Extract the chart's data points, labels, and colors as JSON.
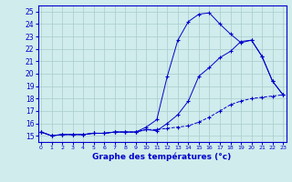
{
  "title": "Graphe des températures (°c)",
  "bg_color": "#d0ecec",
  "grid_color": "#a8cccc",
  "line_color": "#0000cc",
  "x_hours": [
    0,
    1,
    2,
    3,
    4,
    5,
    6,
    7,
    8,
    9,
    10,
    11,
    12,
    13,
    14,
    15,
    16,
    17,
    18,
    19,
    20,
    21,
    22,
    23
  ],
  "temp_line1": [
    15.3,
    15.0,
    15.1,
    15.1,
    15.1,
    15.2,
    15.2,
    15.3,
    15.3,
    15.3,
    15.7,
    16.3,
    19.8,
    22.7,
    24.2,
    24.8,
    24.9,
    24.0,
    23.2,
    22.5,
    22.7,
    21.4,
    19.4,
    18.3
  ],
  "temp_line2": [
    15.3,
    15.0,
    15.1,
    15.1,
    15.1,
    15.2,
    15.2,
    15.3,
    15.3,
    15.3,
    15.5,
    15.4,
    16.0,
    16.7,
    17.8,
    19.8,
    20.5,
    21.3,
    21.8,
    22.6,
    22.7,
    21.4,
    19.4,
    18.3
  ],
  "temp_line3": [
    15.3,
    15.0,
    15.1,
    15.1,
    15.1,
    15.2,
    15.2,
    15.3,
    15.3,
    15.3,
    15.5,
    15.5,
    15.6,
    15.7,
    15.8,
    16.1,
    16.5,
    17.0,
    17.5,
    17.8,
    18.0,
    18.1,
    18.2,
    18.3
  ],
  "ylim": [
    14.5,
    25.5
  ],
  "yticks": [
    15,
    16,
    17,
    18,
    19,
    20,
    21,
    22,
    23,
    24,
    25
  ],
  "xlim": [
    -0.3,
    23.3
  ]
}
